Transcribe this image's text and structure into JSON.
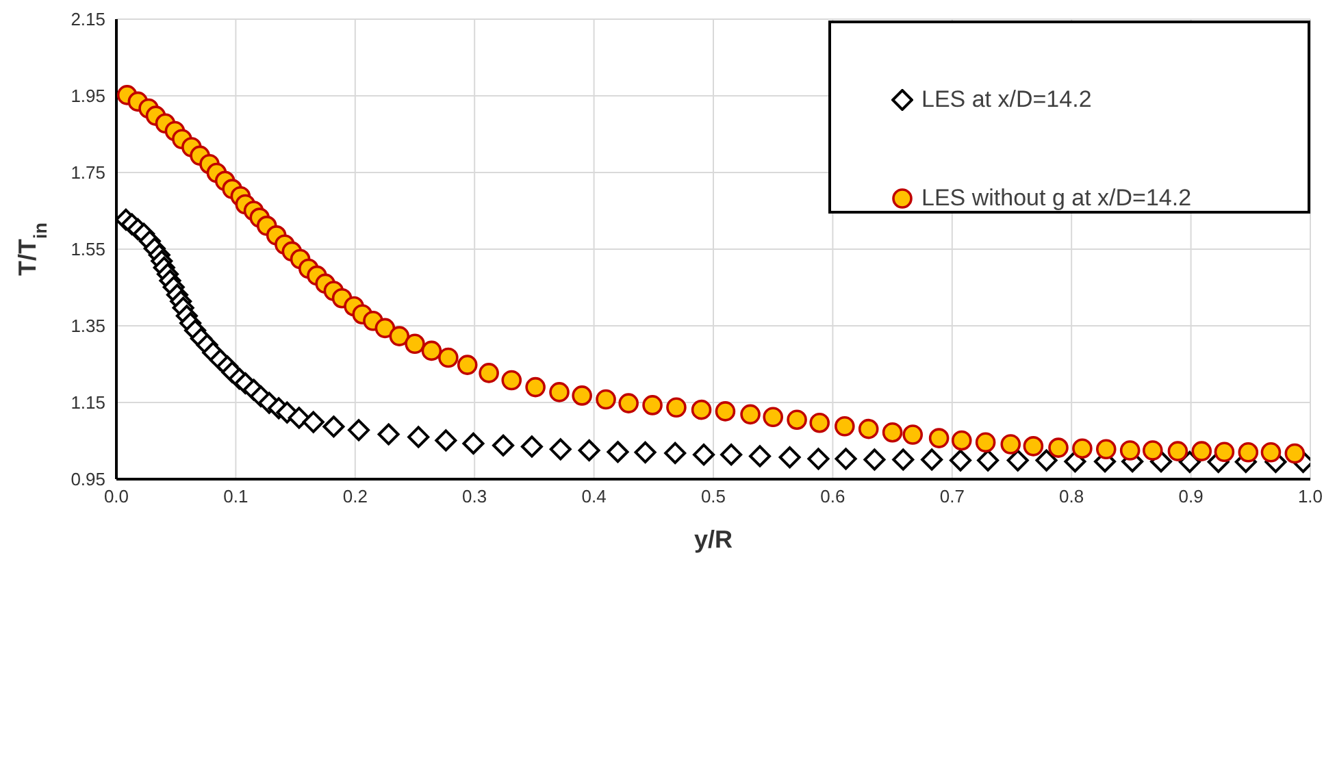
{
  "chart_data": {
    "type": "scatter",
    "xlabel": "y/R",
    "ylabel": "T/T$_{in}$",
    "xlim": [
      0,
      1
    ],
    "xticks": [
      {
        "value": 0,
        "label": "0.0"
      },
      0.1,
      0.2,
      0.3,
      0.4,
      0.5,
      0.6,
      0.7,
      0.8,
      0.9,
      {
        "value": 1,
        "label": "1.0"
      }
    ],
    "ylim": [
      0.95,
      2.15
    ],
    "yticks": [
      0.95,
      1.15,
      1.35,
      1.55,
      1.75,
      1.95,
      2.15
    ],
    "grid": true,
    "legend": "top right",
    "series": [
      {
        "name": "LES at x/D=14.2",
        "color": "#000000",
        "marker": "diamond",
        "x": [
          0.008,
          0.013,
          0.018,
          0.023,
          0.028,
          0.032,
          0.036,
          0.038,
          0.04,
          0.043,
          0.045,
          0.048,
          0.051,
          0.054,
          0.056,
          0.059,
          0.062,
          0.066,
          0.071,
          0.076,
          0.081,
          0.087,
          0.093,
          0.097,
          0.103,
          0.108,
          0.115,
          0.121,
          0.128,
          0.136,
          0.143,
          0.153,
          0.165,
          0.182,
          0.203,
          0.228,
          0.253,
          0.276,
          0.299,
          0.324,
          0.348,
          0.372,
          0.396,
          0.42,
          0.443,
          0.468,
          0.492,
          0.515,
          0.539,
          0.564,
          0.588,
          0.611,
          0.635,
          0.659,
          0.683,
          0.707,
          0.73,
          0.755,
          0.779,
          0.803,
          0.828,
          0.851,
          0.875,
          0.899,
          0.923,
          0.946,
          0.971,
          0.994
        ],
        "values": [
          1.627,
          1.615,
          1.602,
          1.59,
          1.571,
          1.552,
          1.535,
          1.519,
          1.502,
          1.485,
          1.468,
          1.451,
          1.431,
          1.414,
          1.397,
          1.376,
          1.357,
          1.338,
          1.317,
          1.3,
          1.28,
          1.261,
          1.244,
          1.229,
          1.212,
          1.2,
          1.183,
          1.166,
          1.149,
          1.135,
          1.124,
          1.11,
          1.099,
          1.087,
          1.078,
          1.067,
          1.06,
          1.051,
          1.043,
          1.038,
          1.035,
          1.028,
          1.025,
          1.021,
          1.02,
          1.018,
          1.014,
          1.014,
          1.01,
          1.007,
          1.003,
          1.003,
          1.001,
          1.001,
          1.001,
          0.999,
          0.999,
          0.999,
          0.999,
          0.996,
          0.996,
          0.996,
          0.996,
          0.995,
          0.995,
          0.995,
          0.995,
          0.995
        ]
      },
      {
        "name": "LES without g at x/D=14.2",
        "color": "#ffc000",
        "marker": "circle",
        "x": [
          0.009,
          0.018,
          0.027,
          0.033,
          0.041,
          0.049,
          0.055,
          0.063,
          0.07,
          0.078,
          0.084,
          0.091,
          0.097,
          0.104,
          0.108,
          0.115,
          0.12,
          0.126,
          0.134,
          0.141,
          0.147,
          0.154,
          0.161,
          0.168,
          0.175,
          0.182,
          0.189,
          0.199,
          0.206,
          0.215,
          0.225,
          0.237,
          0.25,
          0.264,
          0.278,
          0.294,
          0.312,
          0.331,
          0.351,
          0.371,
          0.39,
          0.41,
          0.429,
          0.449,
          0.469,
          0.49,
          0.51,
          0.531,
          0.55,
          0.57,
          0.589,
          0.61,
          0.63,
          0.65,
          0.667,
          0.689,
          0.708,
          0.728,
          0.749,
          0.768,
          0.789,
          0.809,
          0.829,
          0.849,
          0.868,
          0.889,
          0.909,
          0.928,
          0.948,
          0.967,
          0.987
        ],
        "values": [
          1.952,
          1.935,
          1.917,
          1.898,
          1.878,
          1.858,
          1.837,
          1.816,
          1.794,
          1.772,
          1.749,
          1.728,
          1.707,
          1.688,
          1.667,
          1.65,
          1.632,
          1.611,
          1.586,
          1.562,
          1.544,
          1.524,
          1.499,
          1.481,
          1.46,
          1.441,
          1.422,
          1.401,
          1.38,
          1.363,
          1.344,
          1.323,
          1.303,
          1.285,
          1.267,
          1.248,
          1.227,
          1.208,
          1.19,
          1.177,
          1.168,
          1.158,
          1.148,
          1.143,
          1.137,
          1.131,
          1.127,
          1.119,
          1.112,
          1.105,
          1.097,
          1.088,
          1.081,
          1.072,
          1.066,
          1.057,
          1.051,
          1.046,
          1.041,
          1.036,
          1.032,
          1.03,
          1.028,
          1.025,
          1.025,
          1.023,
          1.023,
          1.021,
          1.02,
          1.02,
          1.017
        ]
      }
    ]
  }
}
